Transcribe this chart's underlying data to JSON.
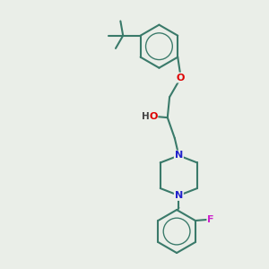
{
  "bg_color": "#eaeee8",
  "bond_color": "#3a7a6a",
  "bond_width": 1.5,
  "atom_colors": {
    "O": "#dd0000",
    "N": "#2222cc",
    "F": "#cc22cc",
    "H": "#444444",
    "C": "#3a7a6a"
  },
  "xlim": [
    0,
    10
  ],
  "ylim": [
    0,
    13
  ],
  "figsize": [
    3.0,
    3.0
  ],
  "dpi": 100
}
